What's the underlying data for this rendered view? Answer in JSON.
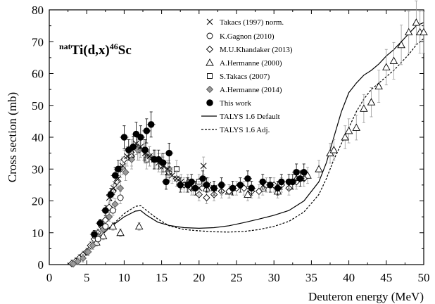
{
  "chart_data": {
    "type": "scatter",
    "title_parts": [
      {
        "text": "nat",
        "sup": true
      },
      {
        "text": "Ti(d,x)",
        "sup": false
      },
      {
        "text": "46",
        "sup": true
      },
      {
        "text": "Sc",
        "sup": false
      }
    ],
    "xlabel": "Deuteron energy (MeV)",
    "ylabel": "Cross section (mb)",
    "xlim": [
      0,
      50
    ],
    "ylim": [
      0,
      80
    ],
    "xticks": [
      "0",
      "5",
      "10",
      "15",
      "20",
      "25",
      "30",
      "35",
      "40",
      "45",
      "50"
    ],
    "yticks": [
      "0",
      "10",
      "20",
      "30",
      "40",
      "50",
      "60",
      "70",
      "80"
    ],
    "grid": false,
    "legend_position": "top-right",
    "colors": {
      "markers": "#000000",
      "error_bars": "#9a9a9a",
      "lines": "#000000",
      "gray_fill": "#9a9a9a"
    },
    "series": [
      {
        "name": "Takacs (1997) norm.",
        "marker": "cross",
        "points": [
          [
            8.0,
            21
          ],
          [
            8.6,
            24
          ],
          [
            9.2,
            27
          ],
          [
            9.8,
            31
          ],
          [
            10.4,
            34
          ],
          [
            11.0,
            36
          ],
          [
            11.6,
            38
          ],
          [
            12.2,
            37
          ],
          [
            12.8,
            35
          ],
          [
            13.4,
            34
          ],
          [
            14.0,
            33
          ],
          [
            14.6,
            32
          ],
          [
            15.2,
            31
          ],
          [
            15.8,
            30
          ],
          [
            16.4,
            28
          ],
          [
            17.0,
            27
          ],
          [
            17.6,
            26
          ],
          [
            18.4,
            25
          ],
          [
            19.2,
            24
          ],
          [
            20.0,
            24
          ],
          [
            20.6,
            31
          ],
          [
            21.2,
            25
          ],
          [
            22.0,
            24
          ],
          [
            23.0,
            24
          ]
        ]
      },
      {
        "name": "K.Gagnon (2010)",
        "marker": "circle-open",
        "points": [
          [
            6.5,
            8
          ],
          [
            7.5,
            12
          ],
          [
            8.5,
            17
          ],
          [
            9.5,
            21
          ]
        ]
      },
      {
        "name": "M.U.Khandaker (2013)",
        "marker": "diamond-open",
        "points": [
          [
            3.0,
            0.3
          ],
          [
            3.5,
            1
          ],
          [
            4.0,
            2
          ],
          [
            4.5,
            3
          ],
          [
            5.0,
            4
          ],
          [
            5.5,
            6
          ],
          [
            6.0,
            8
          ],
          [
            6.5,
            10
          ],
          [
            7.0,
            12
          ],
          [
            7.5,
            14
          ],
          [
            8.0,
            18
          ],
          [
            8.5,
            23
          ],
          [
            9.0,
            26
          ],
          [
            9.5,
            30
          ],
          [
            10.0,
            33
          ],
          [
            11.0,
            34
          ],
          [
            12.0,
            36
          ],
          [
            13.0,
            35
          ],
          [
            14.0,
            33
          ],
          [
            15.0,
            31
          ],
          [
            16.0,
            29
          ],
          [
            17.0,
            27
          ],
          [
            18.0,
            25
          ],
          [
            19.0,
            24
          ],
          [
            20.0,
            22
          ],
          [
            21.0,
            21
          ],
          [
            22.0,
            22
          ],
          [
            23.0,
            23
          ],
          [
            24.0,
            23
          ],
          [
            25.0,
            24
          ],
          [
            26.0,
            24
          ],
          [
            27.0,
            23
          ],
          [
            28.0,
            23
          ],
          [
            29.0,
            25
          ],
          [
            30.0,
            25
          ],
          [
            31.0,
            25
          ],
          [
            32.0,
            24
          ],
          [
            33.0,
            26
          ],
          [
            34.0,
            27
          ]
        ]
      },
      {
        "name": "A.Hermanne (2000)",
        "marker": "triangle-open",
        "points": [
          [
            6.3,
            7
          ],
          [
            7.2,
            9
          ],
          [
            8.5,
            12
          ],
          [
            9.5,
            10
          ],
          [
            12.0,
            12
          ],
          [
            16.0,
            29
          ],
          [
            18.5,
            26
          ],
          [
            21.0,
            24
          ],
          [
            24.0,
            23
          ],
          [
            26.5,
            22
          ],
          [
            28.5,
            24
          ],
          [
            30.5,
            23
          ],
          [
            33.0,
            27
          ],
          [
            34.5,
            28
          ],
          [
            36.0,
            30
          ],
          [
            37.5,
            35
          ],
          [
            38.0,
            36
          ],
          [
            39.5,
            40
          ],
          [
            40.0,
            42
          ],
          [
            41.0,
            43
          ],
          [
            42.0,
            49
          ],
          [
            43.0,
            51
          ],
          [
            44.0,
            56
          ],
          [
            45.0,
            62
          ],
          [
            46.0,
            64
          ],
          [
            47.0,
            69
          ],
          [
            48.0,
            73
          ],
          [
            49.0,
            76
          ],
          [
            49.5,
            73
          ],
          [
            50.0,
            73
          ]
        ]
      },
      {
        "name": "S.Takacs (2007)",
        "marker": "square-open",
        "points": [
          [
            13.0,
            33
          ],
          [
            17.0,
            30
          ],
          [
            20.0,
            26
          ]
        ]
      },
      {
        "name": "A.Hermanne (2014)",
        "marker": "diamond-filled",
        "points": [
          [
            3.2,
            0.2
          ],
          [
            3.8,
            1
          ],
          [
            4.5,
            2
          ],
          [
            5.2,
            4
          ],
          [
            5.8,
            6
          ],
          [
            6.5,
            9
          ],
          [
            7.2,
            11
          ],
          [
            8.0,
            15
          ],
          [
            8.8,
            19
          ],
          [
            9.5,
            24
          ],
          [
            10.2,
            29
          ],
          [
            11.0,
            33
          ],
          [
            11.8,
            36
          ],
          [
            12.6,
            36
          ],
          [
            13.4,
            34
          ],
          [
            14.2,
            33
          ],
          [
            15.0,
            32
          ],
          [
            16.0,
            30
          ]
        ]
      },
      {
        "name": "This work",
        "marker": "circle-filled",
        "points": [
          [
            6.0,
            9.5
          ],
          [
            6.8,
            13
          ],
          [
            7.5,
            17
          ],
          [
            8.2,
            22
          ],
          [
            8.8,
            28
          ],
          [
            9.2,
            30
          ],
          [
            10.0,
            40
          ],
          [
            10.6,
            36
          ],
          [
            11.2,
            37
          ],
          [
            11.6,
            41
          ],
          [
            12.2,
            40
          ],
          [
            12.8,
            36
          ],
          [
            13.0,
            42
          ],
          [
            13.6,
            44
          ],
          [
            14.0,
            33
          ],
          [
            14.6,
            33
          ],
          [
            15.2,
            32
          ],
          [
            15.6,
            26
          ],
          [
            16.0,
            35
          ],
          [
            17.5,
            25
          ],
          [
            18.5,
            25
          ],
          [
            19.0,
            26
          ],
          [
            19.5,
            24
          ],
          [
            20.5,
            27
          ],
          [
            21.0,
            25
          ],
          [
            22.0,
            24
          ],
          [
            23.0,
            25
          ],
          [
            24.5,
            24
          ],
          [
            25.5,
            25
          ],
          [
            26.5,
            27
          ],
          [
            27.0,
            24
          ],
          [
            28.5,
            26
          ],
          [
            29.5,
            25
          ],
          [
            30.5,
            24
          ],
          [
            31.0,
            26
          ],
          [
            32.0,
            26
          ],
          [
            32.5,
            26
          ],
          [
            33.0,
            29
          ],
          [
            33.5,
            27
          ],
          [
            34.0,
            29
          ]
        ]
      },
      {
        "name": "TALYS 1.6 Default",
        "marker": "line-solid",
        "points": [
          [
            2.8,
            0
          ],
          [
            4,
            2.5
          ],
          [
            6,
            7
          ],
          [
            8,
            11.5
          ],
          [
            10,
            15
          ],
          [
            11.5,
            16.8
          ],
          [
            12.2,
            17
          ],
          [
            13,
            15.5
          ],
          [
            14.5,
            13.3
          ],
          [
            16,
            12.3
          ],
          [
            18,
            11.6
          ],
          [
            20,
            11.4
          ],
          [
            22,
            11.6
          ],
          [
            24,
            12.2
          ],
          [
            26,
            13.2
          ],
          [
            28,
            14.3
          ],
          [
            30,
            15.5
          ],
          [
            32,
            17
          ],
          [
            34,
            20
          ],
          [
            36,
            26
          ],
          [
            37,
            32
          ],
          [
            38,
            40
          ],
          [
            39,
            48
          ],
          [
            40,
            54
          ],
          [
            41,
            57
          ],
          [
            42,
            59.5
          ],
          [
            43,
            61
          ],
          [
            44,
            63
          ],
          [
            45,
            65.5
          ],
          [
            46,
            67.5
          ],
          [
            47,
            70
          ],
          [
            48,
            72.5
          ],
          [
            49,
            75
          ],
          [
            50,
            76
          ]
        ]
      },
      {
        "name": "TALYS 1.6 Adj.",
        "marker": "line-dashed",
        "points": [
          [
            2.8,
            0
          ],
          [
            4,
            2.5
          ],
          [
            6,
            7
          ],
          [
            8,
            11.5
          ],
          [
            10,
            16
          ],
          [
            11.5,
            18.3
          ],
          [
            12.2,
            18.5
          ],
          [
            13,
            17
          ],
          [
            14.5,
            14.3
          ],
          [
            16,
            12.2
          ],
          [
            18,
            11
          ],
          [
            20,
            10.6
          ],
          [
            22,
            10.3
          ],
          [
            24,
            10.2
          ],
          [
            26,
            10.4
          ],
          [
            28,
            11
          ],
          [
            30,
            12
          ],
          [
            32,
            13.6
          ],
          [
            34,
            16.5
          ],
          [
            36,
            22
          ],
          [
            37,
            27
          ],
          [
            38,
            33
          ],
          [
            39,
            38
          ],
          [
            40,
            43
          ],
          [
            41,
            48
          ],
          [
            42,
            52
          ],
          [
            43,
            55
          ],
          [
            44,
            57
          ],
          [
            45,
            59
          ],
          [
            46,
            61
          ],
          [
            47,
            63.5
          ],
          [
            48,
            66
          ],
          [
            49,
            69
          ],
          [
            50,
            71
          ]
        ]
      }
    ]
  }
}
